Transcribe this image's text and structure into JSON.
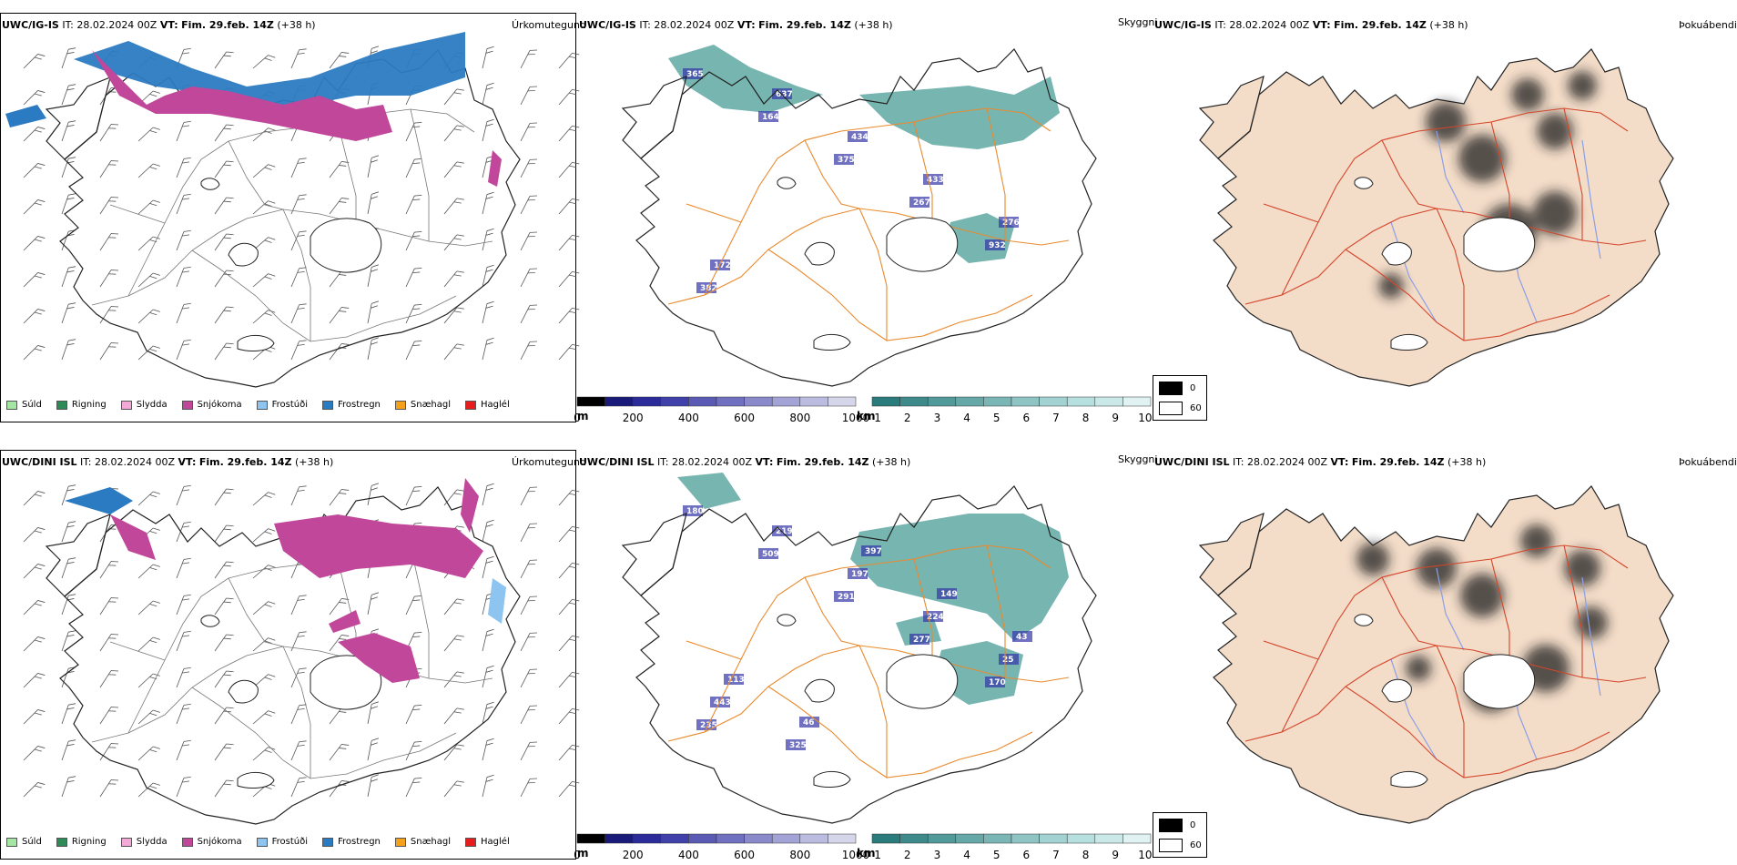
{
  "rows": [
    {
      "model": "UWC/IG-IS",
      "init_label": "IT:",
      "init_time": "28.02.2024 00Z",
      "valid_label": "VT:",
      "valid_time": "Fim. 29.feb. 14Z",
      "lead": "(+38 h)",
      "precip_title": "Úrkomutegund",
      "vis_title": "Skyggni",
      "fog_title": "Þokuábendi",
      "ceiling_labels": [
        "365",
        "164",
        "375",
        "267",
        "932",
        "382",
        "637",
        "434",
        "433",
        "276",
        "172"
      ],
      "vis_cmap_title": ""
    },
    {
      "model": "UWC/DINI ISL",
      "init_label": "IT:",
      "init_time": "28.02.2024 00Z",
      "valid_label": "VT:",
      "valid_time": "Fim. 29.feb. 14Z",
      "lead": "(+38 h)",
      "precip_title": "Úrkomutegund",
      "vis_title": "Skyggni",
      "fog_title": "Þokuábendi",
      "ceiling_labels": [
        "180",
        "509",
        "291",
        "277",
        "170",
        "235",
        "219",
        "197",
        "224",
        "25",
        "443",
        "325",
        "397",
        "149",
        "43",
        "113",
        "46"
      ],
      "vis_cmap_title": ""
    }
  ],
  "precip_legend": [
    {
      "label": "Súld",
      "color": "#a3e7a3"
    },
    {
      "label": "Rigning",
      "color": "#2e8b57"
    },
    {
      "label": "Slydda",
      "color": "#f4a8d8"
    },
    {
      "label": "Snjókoma",
      "color": "#c0479a"
    },
    {
      "label": "Frostúði",
      "color": "#8ec5f0"
    },
    {
      "label": "Frostregn",
      "color": "#2b7bc2"
    },
    {
      "label": "Snæhagl",
      "color": "#f5a21a"
    },
    {
      "label": "Haglél",
      "color": "#e81c1c"
    }
  ],
  "ceiling_bar": {
    "unit": "m",
    "ticks": [
      "0",
      "200",
      "400",
      "600",
      "800",
      "1000"
    ],
    "colors": [
      "#000000",
      "#1a1a7a",
      "#2b2b9a",
      "#4040aa",
      "#5a5ab5",
      "#7070c0",
      "#8a8acb",
      "#a3a3d6",
      "#bcbce0",
      "#d6d6ea"
    ]
  },
  "vis_bar": {
    "unit": "km",
    "ticks": [
      "1",
      "2",
      "3",
      "4",
      "5",
      "6",
      "7",
      "8",
      "9",
      "10"
    ],
    "colors": [
      "#2a7b7b",
      "#3e8a8a",
      "#529999",
      "#66a8a8",
      "#7ab6b6",
      "#8ec4c4",
      "#a2d2d2",
      "#b6e0e0",
      "#cae8e8",
      "#e0f2f2"
    ]
  },
  "fog_key": {
    "values": [
      "0",
      "60"
    ]
  },
  "colors": {
    "coast": "#222222",
    "roads": "#e88a2e",
    "fog_roads": "#d4452a",
    "rivers": "#8aa0e8",
    "land_fog": "#f3dcc8",
    "vis_teal": "#4a9c96",
    "ceiling_blue": "#3434a8"
  }
}
